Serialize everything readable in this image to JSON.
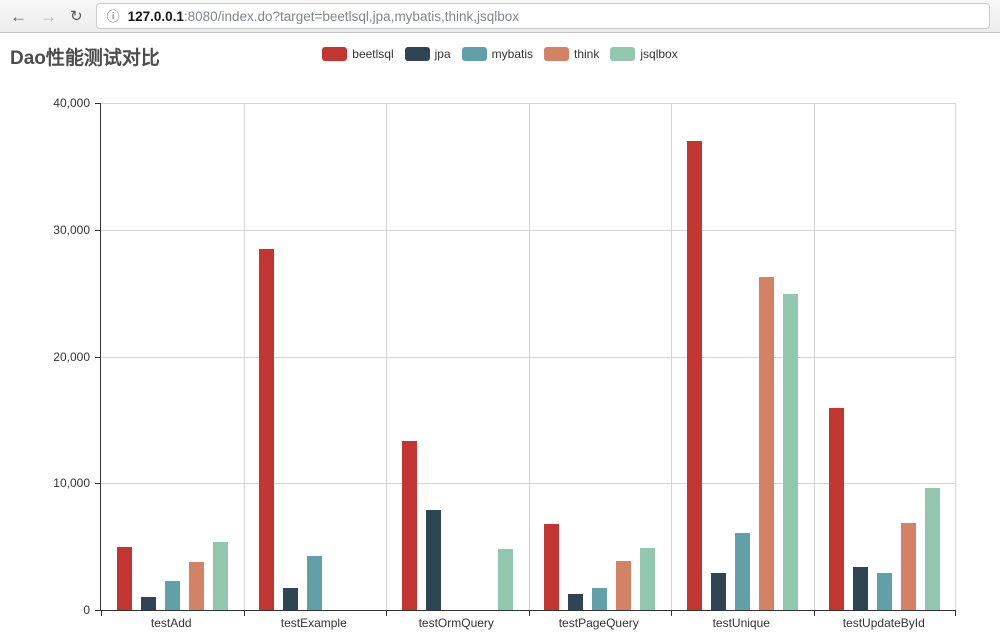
{
  "browser": {
    "back_icon": "←",
    "forward_icon": "→",
    "refresh_icon": "↻",
    "info_icon": "ⓘ",
    "url_host": "127.0.0.1",
    "url_rest": ":8080/index.do?target=beetlsql,jpa,mybatis,think,jsqlbox"
  },
  "chart_data": {
    "type": "bar",
    "title": "Dao性能测试对比",
    "categories": [
      "testAdd",
      "testExample",
      "testOrmQuery",
      "testPageQuery",
      "testUnique",
      "testUpdateById"
    ],
    "series": [
      {
        "name": "beetlsql",
        "color": "#c23531",
        "values": [
          5000,
          28500,
          13300,
          6800,
          37000,
          15900
        ]
      },
      {
        "name": "jpa",
        "color": "#2f4554",
        "values": [
          1000,
          1700,
          7900,
          1300,
          2900,
          3400
        ]
      },
      {
        "name": "mybatis",
        "color": "#61a0a8",
        "values": [
          2300,
          4300,
          0,
          1700,
          6100,
          2900
        ]
      },
      {
        "name": "think",
        "color": "#d48265",
        "values": [
          3800,
          0,
          0,
          3900,
          26300,
          6900
        ]
      },
      {
        "name": "jsqlbox",
        "color": "#91c7ae",
        "values": [
          5400,
          0,
          4800,
          4900,
          24900,
          9600
        ]
      }
    ],
    "xlabel": "",
    "ylabel": "",
    "ylim": [
      0,
      40000
    ],
    "ytick_interval": 10000,
    "ytick_labels": [
      "0",
      "10,000",
      "20,000",
      "30,000",
      "40,000"
    ],
    "grid": true,
    "legend_position": "top-center"
  }
}
